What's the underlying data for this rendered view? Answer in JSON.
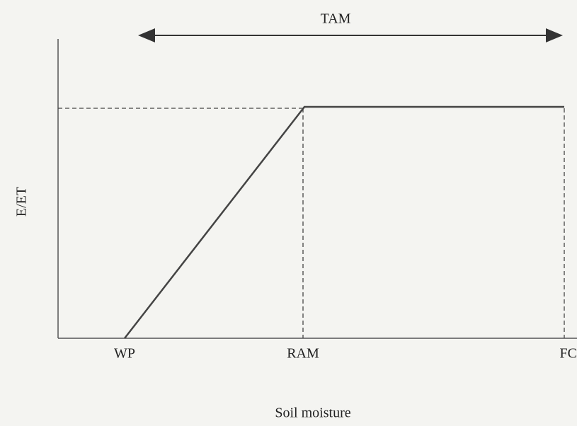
{
  "header": {
    "title": "TAM"
  },
  "axes": {
    "y_label": "E/ET",
    "x_label": "Soil moisture"
  },
  "points": [
    {
      "label": "WP"
    },
    {
      "label": "RAM"
    },
    {
      "label": "FC"
    }
  ]
}
